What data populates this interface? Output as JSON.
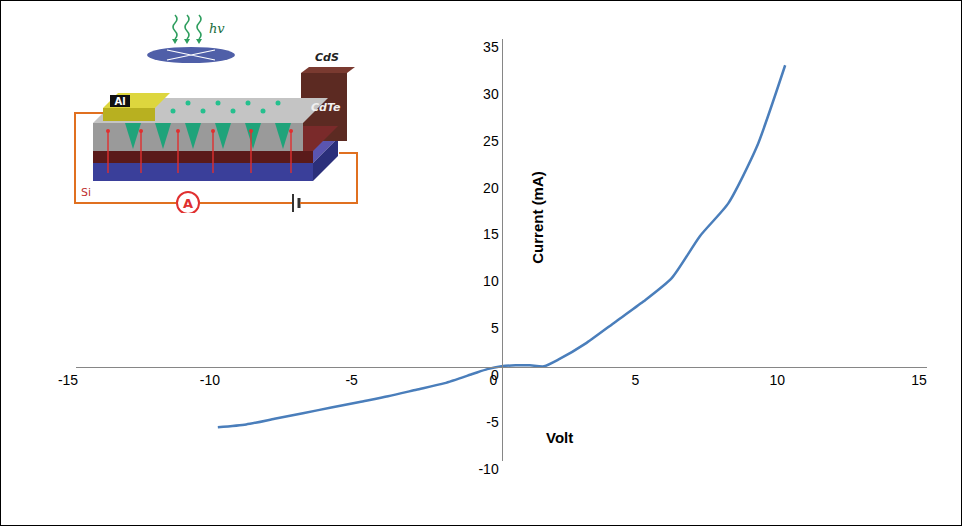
{
  "chart_data": {
    "type": "line",
    "x_label": "Volt",
    "y_label": "Current (mA)",
    "x": [
      -10,
      -9,
      -8,
      -7,
      -6,
      -5,
      -4,
      -3,
      -2,
      -1,
      -0.5,
      0,
      0.5,
      1,
      1.5,
      2,
      3,
      4,
      5,
      6,
      7,
      8,
      9,
      10
    ],
    "values": [
      -6.4,
      -6.1,
      -5.5,
      -4.9,
      -4.3,
      -3.7,
      -3.1,
      -2.4,
      -1.7,
      -0.7,
      -0.2,
      0.1,
      0.2,
      0.2,
      0.1,
      0.8,
      2.6,
      4.8,
      7.0,
      9.5,
      14.0,
      17.5,
      23.5,
      32.2
    ],
    "color": "#4a7ebb",
    "xlim": [
      -15,
      15
    ],
    "xticks": [
      -15,
      -10,
      -5,
      0,
      5,
      10,
      15
    ],
    "ylim": [
      -10,
      35
    ],
    "yticks": [
      -10,
      -5,
      0,
      5,
      10,
      15,
      20,
      25,
      30,
      35
    ],
    "grid": false
  },
  "inset": {
    "light": "hv",
    "contact": "Al",
    "layers": [
      "CdS",
      "CdTe"
    ],
    "substrate": "Si",
    "meter": "A"
  }
}
